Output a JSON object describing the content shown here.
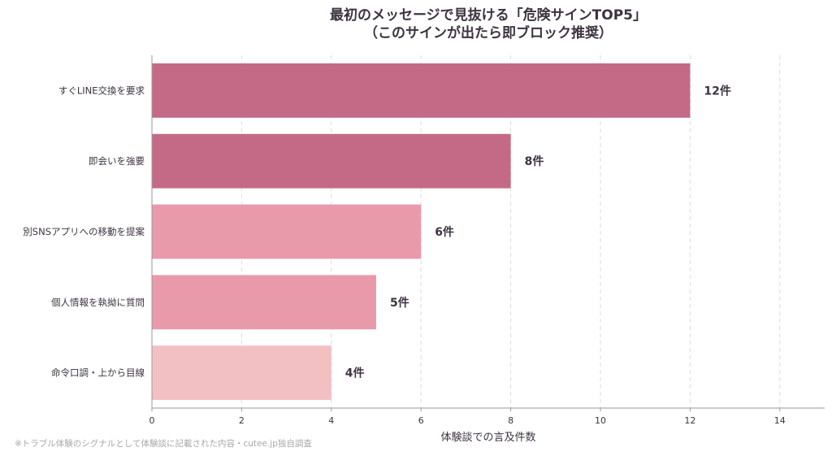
{
  "chart_data": {
    "type": "bar",
    "orientation": "horizontal",
    "title_line1": "最初のメッセージで見抜ける「危険サインTOP5」",
    "title_line2": "（このサインが出たら即ブロック推奨）",
    "xlabel": "体験談での言及件数",
    "ylabel": "",
    "xlim": [
      0,
      15
    ],
    "xticks": [
      0,
      2,
      4,
      6,
      8,
      10,
      12,
      14
    ],
    "grid": "vertical-dashed",
    "categories": [
      "すぐLINE交換を要求",
      "即会いを強要",
      "別SNSアプリへの移動を提案",
      "個人情報を執拗に質問",
      "命令口調・上から目線"
    ],
    "values": [
      12,
      8,
      6,
      5,
      4
    ],
    "value_labels": [
      "12件",
      "8件",
      "6件",
      "5件",
      "4件"
    ],
    "colors": [
      "#c46a86",
      "#c46a86",
      "#e89aab",
      "#e89aab",
      "#f2c0c3"
    ]
  },
  "footnote": "※トラブル体験のシグナルとして体験談に記載された内容・cutee.jp独自調査"
}
